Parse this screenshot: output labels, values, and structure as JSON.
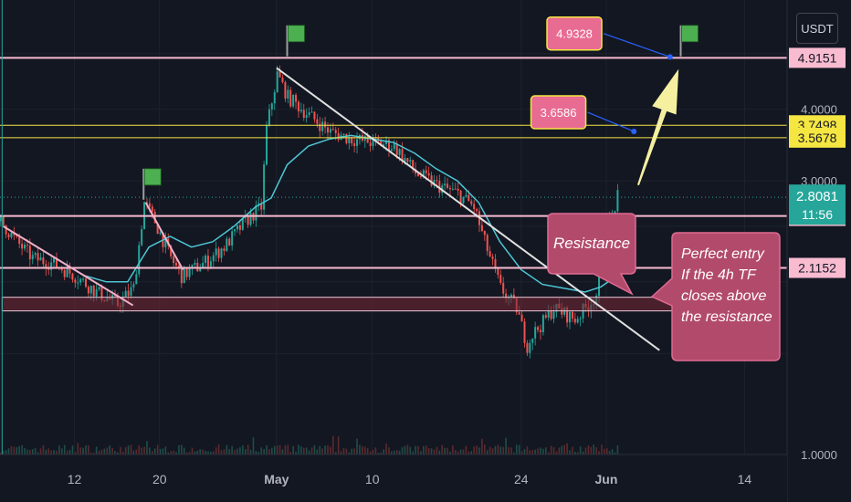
{
  "currency_label": "USDT",
  "chart_data": {
    "type": "candlestick",
    "y_scale": "log",
    "ylim": [
      1.0,
      6.2
    ],
    "y_ticks": [
      {
        "value": 4.9151,
        "label": "4.9151"
      },
      {
        "value": 4.0,
        "label": "4.0000"
      },
      {
        "value": 3.7498,
        "label": "3.7498"
      },
      {
        "value": 3.5678,
        "label": "3.5678"
      },
      {
        "value": 3.0,
        "label": "3.0000"
      },
      {
        "value": 2.8081,
        "label": "2.8081"
      },
      {
        "value": 2.6057,
        "label": "2.6057"
      },
      {
        "value": 2.1152,
        "label": "2.1152"
      },
      {
        "value": 1.0,
        "label": "1.0000"
      }
    ],
    "x_ticks": [
      {
        "day": 12,
        "label": "12"
      },
      {
        "day": 20,
        "label": "20"
      },
      {
        "day": 31,
        "label": "May",
        "bold": true
      },
      {
        "day": 40,
        "label": "10"
      },
      {
        "day": 54,
        "label": "24"
      },
      {
        "day": 62,
        "label": "Jun",
        "bold": true
      },
      {
        "day": 75,
        "label": "14"
      }
    ],
    "x_range_days": [
      5,
      79
    ],
    "price_path": [
      [
        5.0,
        2.55
      ],
      [
        6.5,
        2.35
      ],
      [
        8.0,
        2.2
      ],
      [
        10.0,
        2.15
      ],
      [
        12.0,
        2.05
      ],
      [
        14.0,
        1.92
      ],
      [
        16.0,
        1.83
      ],
      [
        17.5,
        1.95
      ],
      [
        18.5,
        2.75
      ],
      [
        19.5,
        2.55
      ],
      [
        21.0,
        2.2
      ],
      [
        22.0,
        2.05
      ],
      [
        24.0,
        2.15
      ],
      [
        26.0,
        2.3
      ],
      [
        28.0,
        2.55
      ],
      [
        29.5,
        2.7
      ],
      [
        30.0,
        3.7
      ],
      [
        31.0,
        4.6
      ],
      [
        32.0,
        4.2
      ],
      [
        34.0,
        3.9
      ],
      [
        36.0,
        3.65
      ],
      [
        38.0,
        3.55
      ],
      [
        40.0,
        3.5
      ],
      [
        42.0,
        3.45
      ],
      [
        44.0,
        3.1
      ],
      [
        46.0,
        2.95
      ],
      [
        48.0,
        2.85
      ],
      [
        49.5,
        2.7
      ],
      [
        50.5,
        2.35
      ],
      [
        52.0,
        1.95
      ],
      [
        53.5,
        1.8
      ],
      [
        54.5,
        1.55
      ],
      [
        55.0,
        1.62
      ],
      [
        56.0,
        1.7
      ],
      [
        57.0,
        1.8
      ],
      [
        58.0,
        1.76
      ],
      [
        59.0,
        1.72
      ],
      [
        60.0,
        1.8
      ],
      [
        61.0,
        1.9
      ],
      [
        61.5,
        2.2
      ],
      [
        62.0,
        2.45
      ],
      [
        62.5,
        2.6
      ],
      [
        63.0,
        2.81
      ]
    ],
    "moving_average": [
      [
        13.0,
        2.05
      ],
      [
        15.0,
        2.0
      ],
      [
        17.0,
        2.0
      ],
      [
        19.0,
        2.3
      ],
      [
        21.0,
        2.4
      ],
      [
        23.0,
        2.3
      ],
      [
        25.0,
        2.35
      ],
      [
        27.0,
        2.5
      ],
      [
        29.0,
        2.7
      ],
      [
        30.5,
        2.8
      ],
      [
        32.0,
        3.2
      ],
      [
        34.0,
        3.45
      ],
      [
        36.0,
        3.55
      ],
      [
        38.0,
        3.6
      ],
      [
        40.0,
        3.55
      ],
      [
        42.0,
        3.5
      ],
      [
        44.0,
        3.35
      ],
      [
        46.0,
        3.15
      ],
      [
        48.0,
        3.0
      ],
      [
        50.0,
        2.75
      ],
      [
        52.0,
        2.35
      ],
      [
        54.0,
        2.1
      ],
      [
        56.0,
        1.98
      ],
      [
        58.0,
        1.95
      ],
      [
        60.0,
        1.92
      ],
      [
        61.5,
        1.96
      ],
      [
        63.0,
        2.05
      ]
    ],
    "horizontal_levels": [
      {
        "value": 4.9151,
        "color": "#f8bbd0",
        "label": "4.9151",
        "badge_bg": "#f8bbd0",
        "badge_fg": "#131722"
      },
      {
        "value": 3.7498,
        "color": "#f5e642",
        "label": "3.7498",
        "badge_bg": "#f5e642",
        "badge_fg": "#131722"
      },
      {
        "value": 3.5678,
        "color": "#f5e642",
        "label": "3.5678",
        "badge_bg": "#f5e642",
        "badge_fg": "#131722"
      },
      {
        "value": 2.6057,
        "color": "#f8bbd0",
        "label": "2.6057",
        "badge_bg": "#f8bbd0",
        "badge_fg": "#131722"
      },
      {
        "value": 2.1152,
        "color": "#f8bbd0",
        "label": "2.1152",
        "badge_bg": "#f8bbd0",
        "badge_fg": "#131722"
      }
    ],
    "current_price": {
      "value": 2.8081,
      "label": "2.8081",
      "countdown": "11:56",
      "color": "#26a69a"
    },
    "support_zone": {
      "low": 1.78,
      "high": 1.88,
      "x_start_day": 5.2,
      "x_end_day": 76
    },
    "trendlines": [
      {
        "from": [
          5.3,
          2.5
        ],
        "to": [
          17.5,
          1.82
        ],
        "color": "#f0b0c8"
      },
      {
        "from": [
          18.7,
          2.75
        ],
        "to": [
          22.2,
          2.1
        ],
        "color": "#f0b0c8"
      },
      {
        "from": [
          31.0,
          4.72
        ],
        "to": [
          67.0,
          1.52
        ],
        "color": "#e0e0e0"
      }
    ],
    "flags": [
      {
        "day": 18.5,
        "price": 3.15
      },
      {
        "day": 32.0,
        "price": 5.6
      },
      {
        "day": 69.0,
        "price": 5.6
      }
    ],
    "price_callouts": [
      {
        "label": "4.9328",
        "box_day": 59.0,
        "box_price": 5.42,
        "dot_day": 68.0,
        "dot_price": 4.9328
      },
      {
        "label": "3.6586",
        "box_day": 57.5,
        "box_price": 3.95,
        "dot_day": 64.6,
        "dot_price": 3.6586
      }
    ],
    "projection_arrow": {
      "from": [
        65.0,
        2.95
      ],
      "to": [
        68.8,
        4.7
      ],
      "color": "#f5f0a0"
    },
    "annotations": [
      {
        "id": "resistance",
        "text": "Resistance"
      },
      {
        "id": "entry",
        "lines": [
          "Perfect entry",
          "If the 4h TF",
          "closes above",
          "the resistance"
        ]
      }
    ]
  }
}
